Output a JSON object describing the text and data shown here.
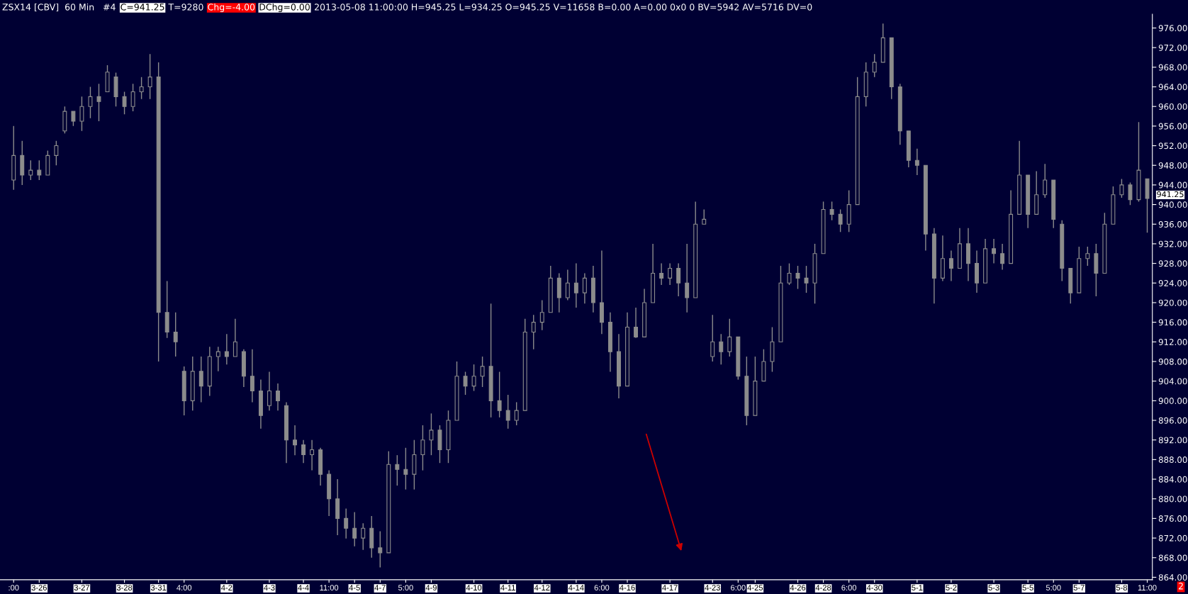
{
  "chart_data": {
    "type": "candlestick",
    "title": "ZSX14 [CBV]  60 Min   #4",
    "categories": [
      ":00",
      null,
      null,
      "3-26",
      null,
      null,
      null,
      null,
      "3-27",
      null,
      null,
      null,
      null,
      "3-28",
      null,
      null,
      null,
      "3-31",
      null,
      null,
      "4:00",
      null,
      null,
      null,
      null,
      "4-2",
      null,
      null,
      null,
      null,
      "4-3",
      null,
      null,
      null,
      "4-4",
      null,
      null,
      "11:00",
      null,
      null,
      "4-5",
      null,
      null,
      "4-7",
      null,
      null,
      "5:00",
      null,
      null,
      "4-9",
      null,
      null,
      null,
      null,
      "4-10",
      null,
      null,
      null,
      "4-11",
      null,
      null,
      null,
      "4-12",
      null,
      null,
      null,
      "4-14",
      null,
      null,
      "6:00",
      null,
      null,
      "4-16",
      null,
      null,
      null,
      null,
      "4-17",
      null,
      null,
      null,
      null,
      "4-23",
      null,
      null,
      "6:00",
      null,
      "4-25",
      null,
      null,
      null,
      null,
      "4-26",
      null,
      null,
      "4-28",
      null,
      null,
      "6:00",
      null,
      null,
      "4-30",
      null,
      null,
      null,
      null,
      "5-1",
      null,
      null,
      null,
      "5-2",
      null,
      null,
      null,
      null,
      "5-3",
      null,
      null,
      null,
      "5-5",
      null,
      null,
      "5:00",
      null,
      null,
      "5-7",
      null,
      null,
      null,
      null,
      "5-8",
      null,
      null,
      "11:00"
    ],
    "ohlc": [
      [
        945,
        956,
        943,
        950
      ],
      [
        950,
        953,
        944,
        946
      ],
      [
        946,
        949,
        945,
        947
      ],
      [
        947,
        949,
        945,
        946
      ],
      [
        946,
        951,
        946,
        950
      ],
      [
        950,
        953,
        948,
        952
      ],
      [
        955,
        960,
        954.5,
        959
      ],
      [
        959,
        959,
        956,
        957
      ],
      [
        957,
        962,
        955,
        960
      ],
      [
        960,
        964,
        957.6,
        962
      ],
      [
        962,
        964.6,
        957,
        961
      ],
      [
        963,
        968.4,
        963,
        967
      ],
      [
        966,
        966.9,
        960,
        962
      ],
      [
        962,
        963,
        958.4,
        960
      ],
      [
        960,
        964.6,
        959,
        963
      ],
      [
        963,
        966,
        961.5,
        964
      ],
      [
        964,
        970.7,
        961.5,
        966
      ],
      [
        966,
        969,
        908,
        918
      ],
      [
        918,
        924.4,
        912.8,
        914
      ],
      [
        914,
        918,
        909,
        912
      ],
      [
        906,
        907,
        897,
        900
      ],
      [
        900,
        909,
        898,
        906
      ],
      [
        906,
        909,
        899.7,
        903
      ],
      [
        903,
        911,
        901,
        909
      ],
      [
        909,
        911,
        906,
        910
      ],
      [
        910,
        913.6,
        907.4,
        909
      ],
      [
        909,
        916.7,
        909,
        912
      ],
      [
        910,
        910.5,
        902.8,
        905
      ],
      [
        905,
        910.5,
        899.7,
        902
      ],
      [
        902,
        904.3,
        894.3,
        897
      ],
      [
        899,
        905.9,
        898,
        902
      ],
      [
        902,
        903.5,
        898,
        900
      ],
      [
        899,
        899.7,
        887.3,
        892
      ],
      [
        892,
        895,
        888.9,
        891
      ],
      [
        891,
        892,
        887.3,
        889
      ],
      [
        889,
        892,
        885.8,
        890
      ],
      [
        890,
        890.4,
        882.7,
        885
      ],
      [
        885,
        885.8,
        876.5,
        880
      ],
      [
        880,
        884,
        872.6,
        876
      ],
      [
        876,
        878,
        871.9,
        874
      ],
      [
        874,
        877.3,
        870.3,
        872
      ],
      [
        872,
        875,
        869.6,
        874
      ],
      [
        874,
        876.5,
        868,
        870
      ],
      [
        870,
        873.4,
        866,
        869
      ],
      [
        869,
        889.7,
        869,
        887
      ],
      [
        887,
        888.9,
        882.7,
        886
      ],
      [
        886,
        890.4,
        881.9,
        885
      ],
      [
        885,
        892,
        881.9,
        889
      ],
      [
        889,
        895,
        885.8,
        892
      ],
      [
        892,
        897.4,
        888.9,
        894
      ],
      [
        894,
        895,
        887.3,
        890
      ],
      [
        890,
        898,
        887.3,
        896
      ],
      [
        896,
        908,
        896,
        905
      ],
      [
        905,
        905.9,
        901.2,
        903
      ],
      [
        903,
        907.4,
        902,
        905
      ],
      [
        905,
        909,
        902.8,
        907
      ],
      [
        907,
        919.8,
        896.6,
        900
      ],
      [
        900,
        905.9,
        896.6,
        898
      ],
      [
        898,
        901.2,
        894.3,
        896
      ],
      [
        896,
        899.7,
        895,
        898
      ],
      [
        898,
        916.7,
        898,
        914
      ],
      [
        914,
        917.5,
        910.5,
        916
      ],
      [
        916,
        920.5,
        914.4,
        918
      ],
      [
        918,
        927.5,
        918,
        925
      ],
      [
        925,
        926,
        918,
        921
      ],
      [
        921,
        926.7,
        920.5,
        924
      ],
      [
        924,
        928,
        919,
        922
      ],
      [
        922,
        926,
        919.8,
        925
      ],
      [
        925,
        927.5,
        918,
        920
      ],
      [
        920,
        930.6,
        913.6,
        916
      ],
      [
        916,
        918,
        905.9,
        910
      ],
      [
        910,
        913.6,
        900.5,
        903
      ],
      [
        903,
        918,
        903,
        915
      ],
      [
        915,
        919,
        912.8,
        913
      ],
      [
        913,
        922.8,
        913,
        920
      ],
      [
        920,
        932,
        920,
        926
      ],
      [
        926,
        928,
        923.6,
        925
      ],
      [
        925,
        928,
        923.6,
        927
      ],
      [
        927,
        928,
        921.3,
        924
      ],
      [
        924,
        932,
        918,
        921
      ],
      [
        921,
        940.6,
        921,
        936
      ],
      [
        936,
        939,
        936,
        937
      ],
      [
        909,
        917.5,
        908,
        912
      ],
      [
        912,
        913.6,
        907.4,
        910
      ],
      [
        910,
        916.7,
        909,
        913
      ],
      [
        913,
        913,
        904.3,
        905
      ],
      [
        905,
        909,
        895,
        897
      ],
      [
        897,
        909,
        897,
        904
      ],
      [
        904,
        910.5,
        904,
        908
      ],
      [
        908,
        915,
        905.9,
        912
      ],
      [
        912,
        927.5,
        912,
        924
      ],
      [
        924,
        928,
        923.6,
        926
      ],
      [
        926,
        927.5,
        922.8,
        925
      ],
      [
        925,
        927.5,
        922,
        924
      ],
      [
        924,
        932,
        919.8,
        930
      ],
      [
        930,
        940.6,
        930,
        939
      ],
      [
        939,
        940.6,
        936.8,
        938
      ],
      [
        938,
        939,
        934.4,
        936
      ],
      [
        936,
        942.9,
        934.4,
        940
      ],
      [
        940,
        966,
        940,
        962
      ],
      [
        962,
        969,
        960,
        967
      ],
      [
        967,
        970.7,
        966,
        969
      ],
      [
        969,
        976.9,
        969,
        974
      ],
      [
        974,
        974,
        961.5,
        964
      ],
      [
        964,
        964.6,
        952.2,
        955
      ],
      [
        955,
        955,
        947.6,
        949
      ],
      [
        949,
        951.4,
        946,
        948
      ],
      [
        948,
        948,
        930.6,
        934
      ],
      [
        934,
        935.2,
        919.8,
        925
      ],
      [
        925,
        933.7,
        924.4,
        929
      ],
      [
        929,
        930.6,
        924.4,
        927
      ],
      [
        927,
        935.2,
        927,
        932
      ],
      [
        932,
        935.2,
        924.4,
        928
      ],
      [
        928,
        930.6,
        922,
        924
      ],
      [
        924,
        933,
        924,
        931
      ],
      [
        931,
        933,
        928,
        930
      ],
      [
        930,
        932,
        926.7,
        928
      ],
      [
        928,
        942.9,
        928,
        938
      ],
      [
        938,
        953,
        938,
        946
      ],
      [
        946,
        946,
        935.2,
        938
      ],
      [
        938,
        946.8,
        938,
        942
      ],
      [
        942,
        948.3,
        941.4,
        945
      ],
      [
        945,
        945,
        935.2,
        937
      ],
      [
        936,
        936.8,
        924.4,
        927
      ],
      [
        927,
        927,
        919.8,
        922
      ],
      [
        922,
        931.4,
        922,
        929
      ],
      [
        929,
        931.4,
        927.5,
        930
      ],
      [
        930,
        932,
        921.3,
        926
      ],
      [
        926,
        938.3,
        926,
        936
      ],
      [
        936,
        943.7,
        936,
        942
      ],
      [
        942,
        945.2,
        941.4,
        944
      ],
      [
        944,
        944.5,
        939.9,
        941
      ],
      [
        941,
        956.8,
        940.6,
        947
      ],
      [
        945.25,
        945.25,
        934.25,
        941.25
      ]
    ],
    "color": "#8c8c8c",
    "ylim": [
      863.5,
      978.8
    ],
    "yticks": [
      {
        "value": 864,
        "label": "864.00"
      },
      {
        "value": 868,
        "label": "868.00"
      },
      {
        "value": 872,
        "label": "872.00"
      },
      {
        "value": 876,
        "label": "876.00"
      },
      {
        "value": 880,
        "label": "880.00"
      },
      {
        "value": 884,
        "label": "884.00"
      },
      {
        "value": 888,
        "label": "888.00"
      },
      {
        "value": 892,
        "label": "892.00"
      },
      {
        "value": 896,
        "label": "896.00"
      },
      {
        "value": 900,
        "label": "900.00"
      },
      {
        "value": 904,
        "label": "904.00"
      },
      {
        "value": 908,
        "label": "908.00"
      },
      {
        "value": 912,
        "label": "912.00"
      },
      {
        "value": 916,
        "label": "916.00"
      },
      {
        "value": 920,
        "label": "920.00"
      },
      {
        "value": 924,
        "label": "924.00"
      },
      {
        "value": 928,
        "label": "928.00"
      },
      {
        "value": 932,
        "label": "932.00"
      },
      {
        "value": 936,
        "label": "936.00"
      },
      {
        "value": 940,
        "label": "940.00"
      },
      {
        "value": 944,
        "label": "944.00"
      },
      {
        "value": 948,
        "label": "948.00"
      },
      {
        "value": 952,
        "label": "952.00"
      },
      {
        "value": 956,
        "label": "956.00"
      },
      {
        "value": 960,
        "label": "960.00"
      },
      {
        "value": 964,
        "label": "964.00"
      },
      {
        "value": 968,
        "label": "968.00"
      },
      {
        "value": 972,
        "label": "972.00"
      },
      {
        "value": 976,
        "label": "976.00"
      }
    ],
    "annotations": [
      "C=941.25",
      "T=9280",
      "Chg=-4.00",
      "DChg=0.00",
      "2013-05-08 11:00:00 H=945.25 L=934.25 O=945.25 V=11658 B=0.00 A=0.00 0x0 0 BV=5942 AV=5716 DV=0",
      "941.25",
      "2"
    ]
  }
}
